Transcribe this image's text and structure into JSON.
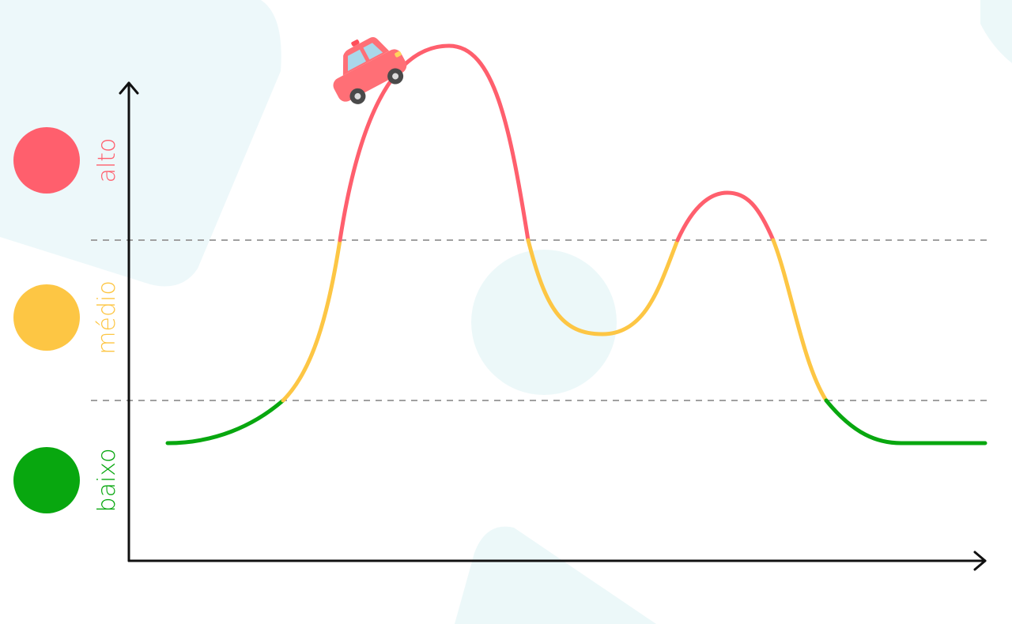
{
  "levels": [
    {
      "key": "high",
      "label": "alto",
      "color": "#ff5f6d"
    },
    {
      "key": "medium",
      "label": "médio",
      "color": "#fdc644"
    },
    {
      "key": "low",
      "label": "baixo",
      "color": "#08a70f"
    }
  ],
  "curve_colors": {
    "high": "#ff5f6d",
    "medium": "#fdc644",
    "low": "#08a70f"
  },
  "icons": {
    "vehicle": "car-icon"
  },
  "colors": {
    "axis": "#111111",
    "threshold": "#a0a0a0",
    "background_shape": "#e7f6f8"
  }
}
